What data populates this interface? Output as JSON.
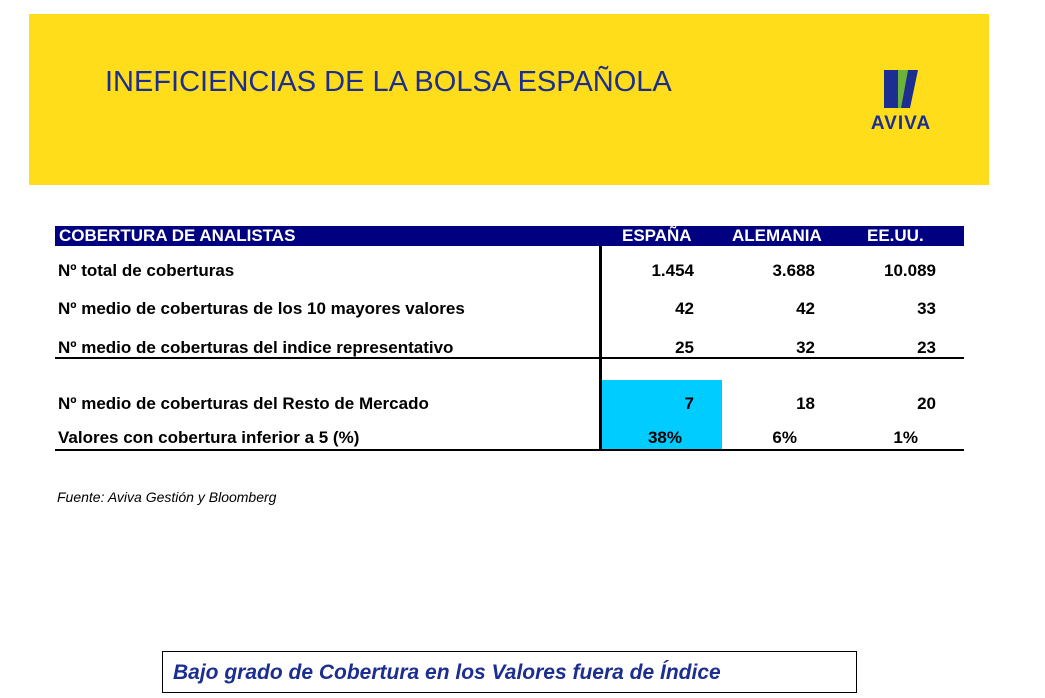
{
  "banner": {
    "title": "INEFICIENCIAS DE LA BOLSA ESPAÑOLA",
    "color": "#ffdd1a",
    "logo": {
      "icon": "aviva-logo-icon",
      "text": "AVIVA"
    }
  },
  "table": {
    "title": "COBERTURA DE ANALISTAS",
    "columns": [
      "ESPAÑA",
      "ALEMANIA",
      "EE.UU."
    ],
    "rows": [
      {
        "label": "Nº total de coberturas",
        "values": [
          "1.454",
          "3.688",
          "10.089"
        ]
      },
      {
        "label": "Nº medio de coberturas de los 10 mayores valores",
        "values": [
          "42",
          "42",
          "33"
        ]
      },
      {
        "label": "Nº medio de coberturas del indice representativo",
        "values": [
          "25",
          "32",
          "23"
        ]
      },
      {
        "label": "Nº medio de coberturas del Resto de Mercado",
        "values": [
          "7",
          "18",
          "20"
        ]
      },
      {
        "label": "Valores con cobertura inferior a 5 (%)",
        "values": [
          "38%",
          "6%",
          "1%"
        ]
      }
    ],
    "header_color": "#000080",
    "highlight_color": "#00ccff"
  },
  "source": "Fuente: Aviva Gestión y Bloomberg",
  "conclusion": "Bajo grado de Cobertura en los Valores fuera de Índice"
}
